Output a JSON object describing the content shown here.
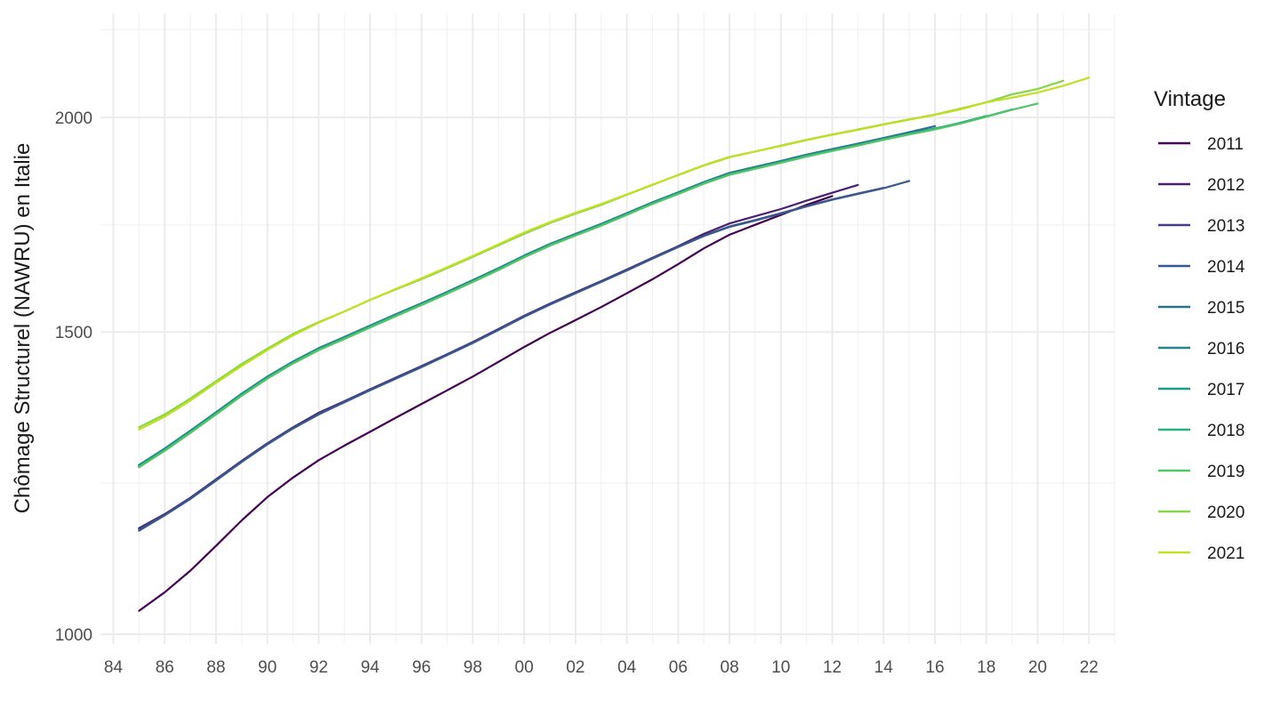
{
  "chart_data": {
    "type": "line",
    "title": "",
    "xlabel": "",
    "ylabel": "Chômage Structurel (NAWRU) en Italie",
    "y_scale": "log",
    "ylim": [
      1000,
      2300
    ],
    "y_ticks": [
      1000,
      1500,
      2000
    ],
    "y_tick_labels": [
      "1000",
      "1500",
      "2000"
    ],
    "xlim": [
      1983.5,
      2023
    ],
    "x_ticks": [
      1984,
      1986,
      1988,
      1990,
      1992,
      1994,
      1996,
      1998,
      2000,
      2002,
      2004,
      2006,
      2008,
      2010,
      2012,
      2014,
      2016,
      2018,
      2020,
      2022
    ],
    "x_tick_labels": [
      "84",
      "86",
      "88",
      "90",
      "92",
      "94",
      "96",
      "98",
      "00",
      "02",
      "04",
      "06",
      "08",
      "10",
      "12",
      "14",
      "16",
      "18",
      "20",
      "22"
    ],
    "grid": true,
    "legend": {
      "title": "Vintage",
      "position": "right"
    },
    "series": [
      {
        "name": "2011",
        "color": "#440154",
        "x": [
          1985,
          1986,
          1987,
          1988,
          1989,
          1990,
          1991,
          1992,
          1993,
          1994,
          1995,
          1996,
          1997,
          1998,
          1999,
          2000,
          2001,
          2002,
          2003,
          2004,
          2005,
          2006,
          2007,
          2008,
          2009,
          2010,
          2011,
          2012
        ],
        "values": [
          1032,
          1058,
          1089,
          1126,
          1165,
          1202,
          1234,
          1263,
          1288,
          1312,
          1337,
          1362,
          1387,
          1413,
          1441,
          1470,
          1498,
          1524,
          1551,
          1580,
          1610,
          1643,
          1678,
          1709,
          1732,
          1755,
          1779,
          1800
        ]
      },
      {
        "name": "2012",
        "color": "#482173",
        "x": [
          1985,
          1986,
          1987,
          1988,
          1989,
          1990,
          1991,
          1992,
          1993,
          1994,
          1995,
          1996,
          1997,
          1998,
          1999,
          2000,
          2001,
          2002,
          2003,
          2004,
          2005,
          2006,
          2007,
          2008,
          2009,
          2010,
          2011,
          2012,
          2013
        ],
        "values": [
          1153,
          1175,
          1201,
          1231,
          1262,
          1292,
          1320,
          1346,
          1367,
          1389,
          1411,
          1433,
          1456,
          1480,
          1506,
          1533,
          1558,
          1582,
          1606,
          1631,
          1657,
          1683,
          1711,
          1735,
          1752,
          1769,
          1789,
          1808,
          1827
        ]
      },
      {
        "name": "2013",
        "color": "#433E85",
        "x": [
          1985,
          1986,
          1987,
          1988,
          1989,
          1990,
          1991,
          1992,
          1993,
          1994,
          1995,
          1996,
          1997,
          1998,
          1999,
          2000,
          2001,
          2002,
          2003,
          2004,
          2005,
          2006,
          2007,
          2008,
          2009,
          2010,
          2011,
          2012,
          2013,
          2014
        ],
        "values": [
          1151,
          1174,
          1200,
          1230,
          1261,
          1291,
          1319,
          1344,
          1366,
          1388,
          1410,
          1432,
          1455,
          1479,
          1505,
          1532,
          1557,
          1581,
          1605,
          1630,
          1656,
          1682,
          1707,
          1728,
          1743,
          1759,
          1776,
          1792,
          1806,
          1820
        ]
      },
      {
        "name": "2014",
        "color": "#38598C",
        "x": [
          1985,
          1986,
          1987,
          1988,
          1989,
          1990,
          1991,
          1992,
          1993,
          1994,
          1995,
          1996,
          1997,
          1998,
          1999,
          2000,
          2001,
          2002,
          2003,
          2004,
          2005,
          2006,
          2007,
          2008,
          2009,
          2010,
          2011,
          2012,
          2013,
          2014,
          2015
        ],
        "values": [
          1149,
          1173,
          1199,
          1229,
          1260,
          1290,
          1318,
          1343,
          1365,
          1387,
          1409,
          1431,
          1454,
          1478,
          1504,
          1531,
          1556,
          1580,
          1604,
          1629,
          1655,
          1681,
          1706,
          1727,
          1742,
          1758,
          1775,
          1791,
          1805,
          1819,
          1837
        ]
      },
      {
        "name": "2015",
        "color": "#2D708E",
        "x": [
          1985,
          1986,
          1987,
          1988,
          1989,
          1990,
          1991,
          1992,
          1993,
          1994,
          1995,
          1996,
          1997,
          1998,
          1999,
          2000,
          2001,
          2002,
          2003,
          2004,
          2005,
          2006,
          2007,
          2008,
          2009,
          2010,
          2011,
          2012,
          2013,
          2014,
          2015,
          2016
        ],
        "values": [
          1255,
          1283,
          1314,
          1347,
          1381,
          1413,
          1442,
          1468,
          1490,
          1513,
          1536,
          1559,
          1583,
          1608,
          1634,
          1662,
          1688,
          1711,
          1734,
          1759,
          1785,
          1809,
          1834,
          1857,
          1872,
          1887,
          1903,
          1917,
          1931,
          1946,
          1961,
          1977
        ]
      },
      {
        "name": "2016",
        "color": "#25858E",
        "x": [
          1985,
          1986,
          1987,
          1988,
          1989,
          1990,
          1991,
          1992,
          1993,
          1994,
          1995,
          1996,
          1997,
          1998,
          1999,
          2000,
          2001,
          2002,
          2003,
          2004,
          2005,
          2006,
          2007,
          2008,
          2009,
          2010,
          2011,
          2012,
          2013,
          2014,
          2015,
          2016,
          2017
        ],
        "values": [
          1254,
          1282,
          1313,
          1346,
          1380,
          1412,
          1441,
          1467,
          1489,
          1512,
          1535,
          1558,
          1582,
          1607,
          1633,
          1661,
          1687,
          1710,
          1733,
          1758,
          1784,
          1808,
          1833,
          1855,
          1870,
          1885,
          1901,
          1915,
          1929,
          1944,
          1958,
          1971,
          1985
        ]
      },
      {
        "name": "2017",
        "color": "#1E9B8A",
        "x": [
          1985,
          1986,
          1987,
          1988,
          1989,
          1990,
          1991,
          1992,
          1993,
          1994,
          1995,
          1996,
          1997,
          1998,
          1999,
          2000,
          2001,
          2002,
          2003,
          2004,
          2005,
          2006,
          2007,
          2008,
          2009,
          2010,
          2011,
          2012,
          2013,
          2014,
          2015,
          2016,
          2017,
          2018
        ],
        "values": [
          1253,
          1281,
          1312,
          1345,
          1379,
          1411,
          1440,
          1466,
          1488,
          1511,
          1534,
          1557,
          1581,
          1606,
          1632,
          1660,
          1686,
          1709,
          1732,
          1757,
          1783,
          1807,
          1832,
          1854,
          1869,
          1884,
          1900,
          1914,
          1928,
          1943,
          1957,
          1970,
          1986,
          2004
        ]
      },
      {
        "name": "2018",
        "color": "#2AB07F",
        "x": [
          1985,
          1986,
          1987,
          1988,
          1989,
          1990,
          1991,
          1992,
          1993,
          1994,
          1995,
          1996,
          1997,
          1998,
          1999,
          2000,
          2001,
          2002,
          2003,
          2004,
          2005,
          2006,
          2007,
          2008,
          2009,
          2010,
          2011,
          2012,
          2013,
          2014,
          2015,
          2016,
          2017,
          2018,
          2019
        ],
        "values": [
          1252,
          1280,
          1311,
          1344,
          1378,
          1410,
          1439,
          1465,
          1487,
          1510,
          1533,
          1556,
          1580,
          1605,
          1631,
          1659,
          1685,
          1708,
          1731,
          1756,
          1782,
          1806,
          1831,
          1853,
          1868,
          1883,
          1899,
          1913,
          1927,
          1942,
          1956,
          1969,
          1985,
          2003,
          2022
        ]
      },
      {
        "name": "2019",
        "color": "#52C569",
        "x": [
          1985,
          1986,
          1987,
          1988,
          1989,
          1990,
          1991,
          1992,
          1993,
          1994,
          1995,
          1996,
          1997,
          1998,
          1999,
          2000,
          2001,
          2002,
          2003,
          2004,
          2005,
          2006,
          2007,
          2008,
          2009,
          2010,
          2011,
          2012,
          2013,
          2014,
          2015,
          2016,
          2017,
          2018,
          2019,
          2020
        ],
        "values": [
          1251,
          1279,
          1310,
          1343,
          1377,
          1409,
          1438,
          1464,
          1486,
          1509,
          1532,
          1555,
          1579,
          1604,
          1630,
          1658,
          1684,
          1707,
          1730,
          1755,
          1781,
          1805,
          1830,
          1852,
          1867,
          1882,
          1898,
          1912,
          1926,
          1941,
          1955,
          1968,
          1984,
          2002,
          2021,
          2038
        ]
      },
      {
        "name": "2020",
        "color": "#86D549",
        "x": [
          1985,
          1986,
          1987,
          1988,
          1989,
          1990,
          1991,
          1992,
          1993,
          1994,
          1995,
          1996,
          1997,
          1998,
          1999,
          2000,
          2001,
          2002,
          2003,
          2004,
          2005,
          2006,
          2007,
          2008,
          2009,
          2010,
          2011,
          2012,
          2013,
          2014,
          2015,
          2016,
          2017,
          2018,
          2019,
          2020,
          2021
        ],
        "values": [
          1320,
          1343,
          1372,
          1404,
          1437,
          1467,
          1496,
          1520,
          1542,
          1566,
          1588,
          1610,
          1634,
          1659,
          1685,
          1711,
          1736,
          1758,
          1779,
          1803,
          1827,
          1852,
          1876,
          1897,
          1911,
          1926,
          1941,
          1955,
          1968,
          1982,
          1995,
          2008,
          2024,
          2041,
          2063,
          2078,
          2101
        ]
      },
      {
        "name": "2021",
        "color": "#C2DF23",
        "x": [
          1985,
          1986,
          1987,
          1988,
          1989,
          1990,
          1991,
          1992,
          1993,
          1994,
          1995,
          1996,
          1997,
          1998,
          1999,
          2000,
          2001,
          2002,
          2003,
          2004,
          2005,
          2006,
          2007,
          2008,
          2009,
          2010,
          2011,
          2012,
          2013,
          2014,
          2015,
          2016,
          2017,
          2018,
          2019,
          2020,
          2021,
          2022
        ],
        "values": [
          1316,
          1339,
          1368,
          1401,
          1433,
          1464,
          1493,
          1519,
          1542,
          1566,
          1589,
          1612,
          1636,
          1661,
          1687,
          1714,
          1738,
          1760,
          1781,
          1804,
          1828,
          1851,
          1875,
          1896,
          1911,
          1925,
          1940,
          1954,
          1967,
          1981,
          1994,
          2007,
          2022,
          2041,
          2054,
          2068,
          2087,
          2110
        ]
      }
    ]
  }
}
